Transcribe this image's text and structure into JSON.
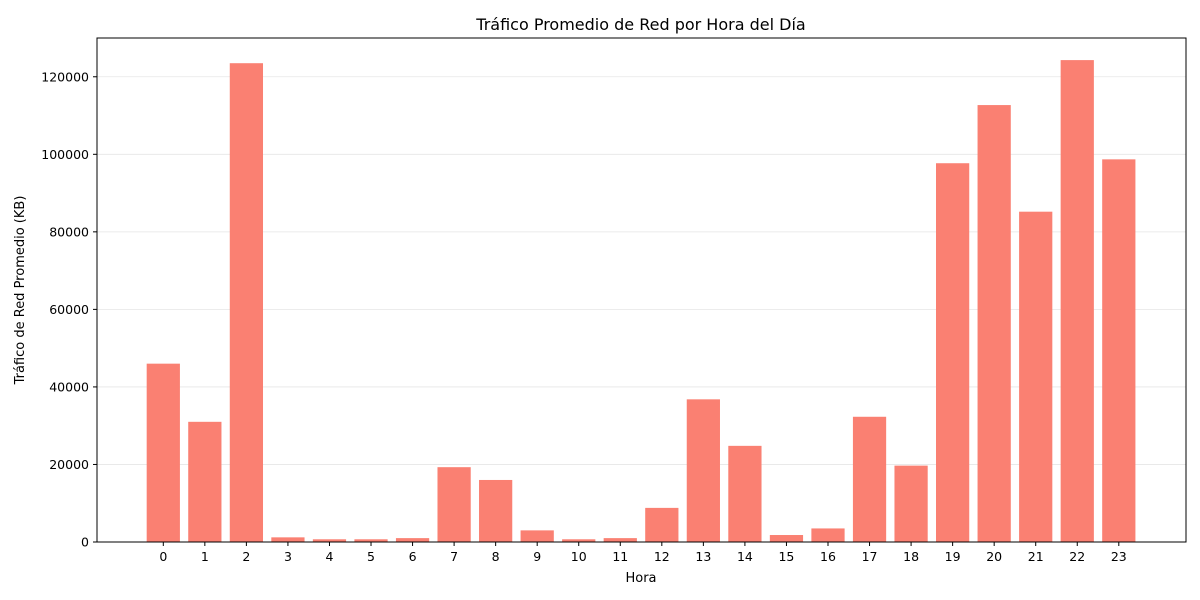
{
  "chart_data": {
    "type": "bar",
    "title": "Tráfico Promedio de Red por Hora del Día",
    "xlabel": "Hora",
    "ylabel": "Tráfico de Red Promedio (KB)",
    "categories": [
      "0",
      "1",
      "2",
      "3",
      "4",
      "5",
      "6",
      "7",
      "8",
      "9",
      "10",
      "11",
      "12",
      "13",
      "14",
      "15",
      "16",
      "17",
      "18",
      "19",
      "20",
      "21",
      "22",
      "23"
    ],
    "values": [
      46000,
      31000,
      123500,
      1200,
      700,
      700,
      1000,
      19300,
      16000,
      3000,
      700,
      1000,
      8800,
      36800,
      24800,
      1800,
      3500,
      32300,
      19700,
      97700,
      112700,
      85200,
      124300,
      98700
    ],
    "ylim": [
      0,
      130000
    ],
    "yticks": [
      0,
      20000,
      40000,
      60000,
      80000,
      100000,
      120000
    ],
    "grid": "y",
    "bar_color": "#fa8072"
  }
}
